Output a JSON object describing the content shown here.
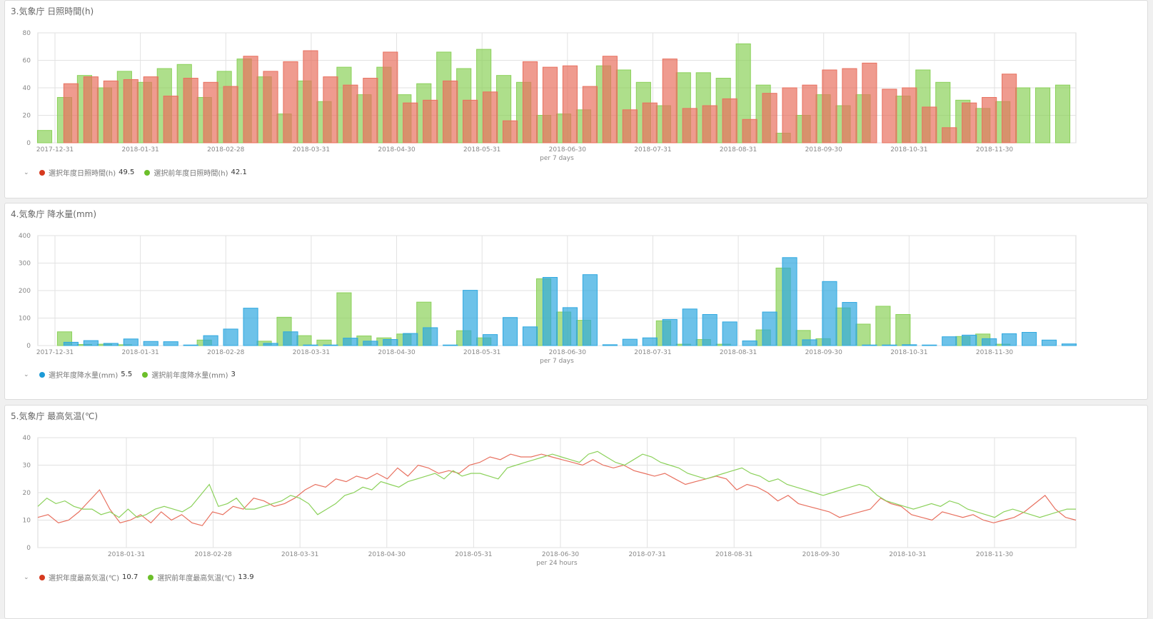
{
  "chart_data": [
    {
      "type": "bar",
      "title": "3.気象庁 日照時間(h)",
      "interval_label": "per 7 days",
      "ylim": [
        0,
        80
      ],
      "yticks": [
        0,
        20,
        40,
        60,
        80
      ],
      "xtick_labels": [
        "2017-12-31",
        "2018-01-31",
        "2018-02-28",
        "2018-03-31",
        "2018-04-30",
        "2018-05-31",
        "2018-06-30",
        "2018-07-31",
        "2018-08-31",
        "2018-09-30",
        "2018-10-31",
        "2018-11-30"
      ],
      "series": [
        {
          "name": "選択年度日照時間(h)",
          "color": "#e8705f",
          "legend_value": "49.5",
          "values": [
            0,
            43,
            48,
            45,
            46,
            48,
            34,
            47,
            44,
            41,
            63,
            52,
            59,
            67,
            48,
            42,
            47,
            66,
            29,
            31,
            45,
            31,
            37,
            16,
            59,
            55,
            56,
            41,
            63,
            24,
            29,
            61,
            25,
            27,
            32,
            17,
            36,
            40,
            42,
            53,
            54,
            58,
            39,
            40,
            26,
            11,
            29,
            33,
            50
          ]
        },
        {
          "name": "選択前年度日照時間(h)",
          "color": "#8bd15a",
          "legend_value": "42.1",
          "values": [
            9,
            33,
            49,
            40,
            52,
            44,
            54,
            57,
            33,
            52,
            61,
            48,
            21,
            45,
            30,
            55,
            35,
            55,
            35,
            43,
            66,
            54,
            68,
            49,
            44,
            20,
            21,
            24,
            56,
            53,
            44,
            27,
            51,
            51,
            47,
            72,
            42,
            7,
            20,
            35,
            27,
            35,
            0,
            34,
            53,
            44,
            31,
            25,
            30,
            40,
            40,
            42
          ]
        }
      ]
    },
    {
      "type": "bar",
      "title": "4.気象庁 降水量(mm)",
      "interval_label": "per 7 days",
      "ylim": [
        0,
        400
      ],
      "yticks": [
        0,
        100,
        200,
        300,
        400
      ],
      "xtick_labels": [
        "2017-12-31",
        "2018-01-31",
        "2018-02-28",
        "2018-03-31",
        "2018-04-30",
        "2018-05-31",
        "2018-06-30",
        "2018-07-31",
        "2018-08-31",
        "2018-09-30",
        "2018-10-31",
        "2018-11-30"
      ],
      "series": [
        {
          "name": "選択年度降水量(mm)",
          "color": "#2fa8e0",
          "legend_value": "5.5",
          "values": [
            0,
            12,
            18,
            8,
            24,
            15,
            14,
            2,
            36,
            60,
            136,
            8,
            50,
            2,
            2,
            27,
            16,
            22,
            44,
            65,
            2,
            201,
            40,
            102,
            68,
            248,
            138,
            258,
            3,
            23,
            28,
            95,
            133,
            113,
            86,
            17,
            122,
            320,
            21,
            233,
            157,
            2,
            2,
            3,
            2,
            32,
            38,
            25,
            43,
            48,
            20,
            6
          ]
        },
        {
          "name": "選択前年度降水量(mm)",
          "color": "#8bd15a",
          "legend_value": "3",
          "values": [
            0,
            50,
            4,
            5,
            3,
            0,
            0,
            0,
            20,
            0,
            0,
            16,
            103,
            36,
            20,
            192,
            35,
            28,
            42,
            158,
            0,
            54,
            28,
            0,
            0,
            243,
            122,
            92,
            0,
            0,
            0,
            90,
            5,
            22,
            5,
            0,
            57,
            282,
            55,
            25,
            137,
            78,
            143,
            113,
            0,
            0,
            33,
            42,
            5,
            0,
            0,
            0
          ]
        }
      ]
    },
    {
      "type": "line",
      "title": "5.気象庁 最高気温(℃)",
      "interval_label": "per 24 hours",
      "ylim": [
        0,
        40
      ],
      "yticks": [
        0,
        10,
        20,
        30,
        40
      ],
      "xtick_labels": [
        "2018-01-31",
        "2018-02-28",
        "2018-03-31",
        "2018-04-30",
        "2018-05-31",
        "2018-06-30",
        "2018-07-31",
        "2018-08-31",
        "2018-09-30",
        "2018-10-31",
        "2018-11-30"
      ],
      "series": [
        {
          "name": "選択年度最高気温(℃)",
          "color": "#e8705f",
          "legend_value": "10.7",
          "values": [
            11,
            12,
            9,
            10,
            13,
            17,
            21,
            14,
            9,
            10,
            12,
            9,
            13,
            10,
            12,
            9,
            8,
            13,
            12,
            15,
            14,
            18,
            17,
            15,
            16,
            18,
            21,
            23,
            22,
            25,
            24,
            26,
            25,
            27,
            25,
            29,
            26,
            30,
            29,
            27,
            28,
            27,
            30,
            31,
            33,
            32,
            34,
            33,
            33,
            34,
            33,
            32,
            31,
            30,
            32,
            30,
            29,
            30,
            28,
            27,
            26,
            27,
            25,
            23,
            24,
            25,
            26,
            25,
            21,
            23,
            22,
            20,
            17,
            19,
            16,
            15,
            14,
            13,
            11,
            12,
            13,
            14,
            18,
            16,
            15,
            12,
            11,
            10,
            13,
            12,
            11,
            12,
            10,
            9,
            10,
            11,
            13,
            16,
            19,
            14,
            11,
            10
          ]
        },
        {
          "name": "選択前年度最高気温(℃)",
          "color": "#8bd15a",
          "legend_value": "13.9",
          "values": [
            15,
            18,
            16,
            17,
            15,
            14,
            14,
            12,
            13,
            11,
            14,
            11,
            12,
            14,
            15,
            14,
            13,
            15,
            19,
            23,
            15,
            16,
            18,
            14,
            14,
            15,
            16,
            17,
            19,
            18,
            16,
            12,
            14,
            16,
            19,
            20,
            22,
            21,
            24,
            23,
            22,
            24,
            25,
            26,
            27,
            25,
            28,
            26,
            27,
            27,
            26,
            25,
            29,
            30,
            31,
            32,
            33,
            34,
            33,
            32,
            31,
            34,
            35,
            33,
            31,
            30,
            32,
            34,
            33,
            31,
            30,
            29,
            27,
            26,
            25,
            26,
            27,
            28,
            29,
            27,
            26,
            24,
            25,
            23,
            22,
            21,
            20,
            19,
            20,
            21,
            22,
            23,
            22,
            19,
            17,
            16,
            15,
            14,
            15,
            16,
            15,
            17,
            16,
            14,
            13,
            12,
            11,
            13,
            14,
            13,
            12,
            11,
            12,
            13,
            14,
            14
          ]
        }
      ]
    }
  ]
}
